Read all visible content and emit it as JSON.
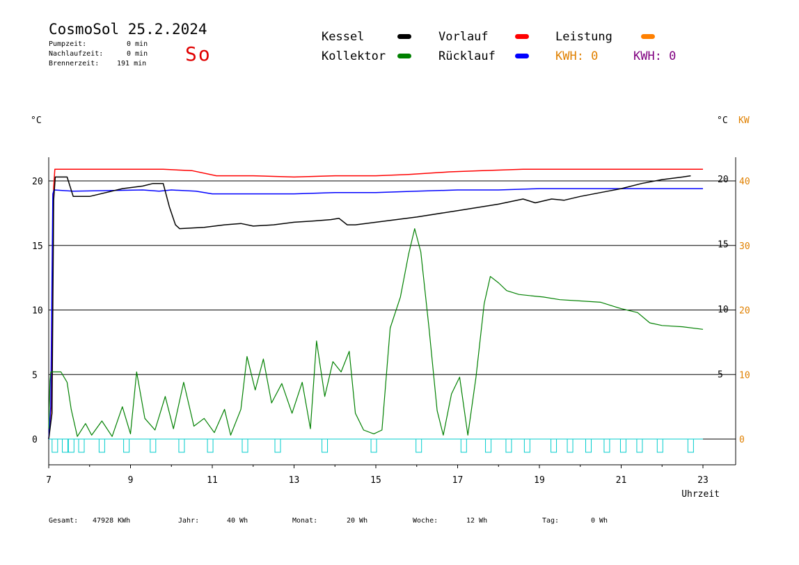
{
  "header": {
    "title": "CosmoSol 25.2.2024",
    "weekday": "So",
    "stats": [
      {
        "label": "Pumpzeit:",
        "value": "0 min"
      },
      {
        "label": "Nachlaufzeit:",
        "value": "0 min"
      },
      {
        "label": "Brennerzeit:",
        "value": "191 min"
      }
    ]
  },
  "legend": {
    "items": [
      {
        "label": "Kessel",
        "color": "#000000"
      },
      {
        "label": "Kollektor",
        "color": "#008000"
      },
      {
        "label": "Vorlauf",
        "color": "#ff0000"
      },
      {
        "label": "Rücklauf",
        "color": "#0000ff"
      },
      {
        "label": "Leistung",
        "color": "#ff8000"
      }
    ],
    "kwh_orange": "KWH: 0",
    "kwh_purple": "KWH: 0",
    "kwh_orange_color": "#e08000",
    "kwh_purple_color": "#800080"
  },
  "axis_units": {
    "left": "°C",
    "right_temp": "°C",
    "right_power": "KW"
  },
  "footer": [
    {
      "label": "Gesamt:",
      "value": "47928 KWh"
    },
    {
      "label": "Jahr:",
      "value": "40 Wh"
    },
    {
      "label": "Monat:",
      "value": "20 Wh"
    },
    {
      "label": "Woche:",
      "value": "12 Wh"
    },
    {
      "label": "Tag:",
      "value": "0 Wh"
    }
  ],
  "chart_data": {
    "type": "line",
    "xlabel": "Uhrzeit",
    "xlim": [
      7,
      23
    ],
    "x_ticks": [
      "7",
      "9",
      "11",
      "13",
      "15",
      "17",
      "19",
      "21",
      "23"
    ],
    "y_left_ticks": [
      "0",
      "5",
      "10",
      "15",
      "20"
    ],
    "y_right_temp_ticks": [
      "5",
      "10",
      "15",
      "20"
    ],
    "y_right_power_ticks": [
      "0",
      "10",
      "20",
      "30",
      "40"
    ],
    "ylim": [
      0,
      20
    ],
    "grid": true,
    "series": [
      {
        "name": "Vorlauf",
        "color": "#ff0000",
        "points": [
          [
            7.0,
            0
          ],
          [
            7.07,
            3
          ],
          [
            7.12,
            19.5
          ],
          [
            7.15,
            20.9
          ],
          [
            8.5,
            20.9
          ],
          [
            9.8,
            20.9
          ],
          [
            10.5,
            20.8
          ],
          [
            11.1,
            20.4
          ],
          [
            12.0,
            20.4
          ],
          [
            13.0,
            20.3
          ],
          [
            14.0,
            20.4
          ],
          [
            15.0,
            20.4
          ],
          [
            15.8,
            20.5
          ],
          [
            16.3,
            20.6
          ],
          [
            16.8,
            20.7
          ],
          [
            17.6,
            20.8
          ],
          [
            18.6,
            20.9
          ],
          [
            23.0,
            20.9
          ]
        ]
      },
      {
        "name": "Rücklauf",
        "color": "#0000ff",
        "points": [
          [
            7.0,
            0
          ],
          [
            7.05,
            2.5
          ],
          [
            7.1,
            19.0
          ],
          [
            7.13,
            19.3
          ],
          [
            7.6,
            19.2
          ],
          [
            9.3,
            19.3
          ],
          [
            9.7,
            19.2
          ],
          [
            10.0,
            19.3
          ],
          [
            10.6,
            19.2
          ],
          [
            11.0,
            19.0
          ],
          [
            12.0,
            19.0
          ],
          [
            13.0,
            19.0
          ],
          [
            14.0,
            19.1
          ],
          [
            15.0,
            19.1
          ],
          [
            16.0,
            19.2
          ],
          [
            17.0,
            19.3
          ],
          [
            18.0,
            19.3
          ],
          [
            19.0,
            19.4
          ],
          [
            20.0,
            19.4
          ],
          [
            23.0,
            19.4
          ]
        ]
      },
      {
        "name": "Kessel",
        "color": "#000000",
        "points": [
          [
            7.0,
            0
          ],
          [
            7.08,
            2
          ],
          [
            7.12,
            18.5
          ],
          [
            7.16,
            20.3
          ],
          [
            7.45,
            20.3
          ],
          [
            7.6,
            18.8
          ],
          [
            8.0,
            18.8
          ],
          [
            8.8,
            19.4
          ],
          [
            9.3,
            19.6
          ],
          [
            9.55,
            19.8
          ],
          [
            9.8,
            19.8
          ],
          [
            9.95,
            18.0
          ],
          [
            10.1,
            16.6
          ],
          [
            10.2,
            16.3
          ],
          [
            10.8,
            16.4
          ],
          [
            11.3,
            16.6
          ],
          [
            11.7,
            16.7
          ],
          [
            12.0,
            16.5
          ],
          [
            12.5,
            16.6
          ],
          [
            13.0,
            16.8
          ],
          [
            13.5,
            16.9
          ],
          [
            13.9,
            17.0
          ],
          [
            14.1,
            17.1
          ],
          [
            14.3,
            16.6
          ],
          [
            14.5,
            16.6
          ],
          [
            15.0,
            16.8
          ],
          [
            16.0,
            17.2
          ],
          [
            17.0,
            17.7
          ],
          [
            18.0,
            18.2
          ],
          [
            18.6,
            18.6
          ],
          [
            18.9,
            18.3
          ],
          [
            19.3,
            18.6
          ],
          [
            19.6,
            18.5
          ],
          [
            20.0,
            18.8
          ],
          [
            20.5,
            19.1
          ],
          [
            21.0,
            19.4
          ],
          [
            21.5,
            19.8
          ],
          [
            22.0,
            20.1
          ],
          [
            22.5,
            20.3
          ],
          [
            22.7,
            20.4
          ]
        ]
      },
      {
        "name": "Kollektor",
        "color": "#008000",
        "points": [
          [
            7.0,
            0.8
          ],
          [
            7.03,
            4.5
          ],
          [
            7.05,
            5.2
          ],
          [
            7.3,
            5.2
          ],
          [
            7.45,
            4.4
          ],
          [
            7.55,
            2.3
          ],
          [
            7.7,
            0.2
          ],
          [
            7.9,
            1.2
          ],
          [
            8.05,
            0.3
          ],
          [
            8.3,
            1.4
          ],
          [
            8.55,
            0.2
          ],
          [
            8.8,
            2.5
          ],
          [
            9.0,
            0.4
          ],
          [
            9.15,
            5.2
          ],
          [
            9.35,
            1.6
          ],
          [
            9.6,
            0.7
          ],
          [
            9.85,
            3.3
          ],
          [
            10.05,
            0.8
          ],
          [
            10.3,
            4.4
          ],
          [
            10.55,
            1.0
          ],
          [
            10.8,
            1.6
          ],
          [
            11.05,
            0.5
          ],
          [
            11.3,
            2.3
          ],
          [
            11.45,
            0.3
          ],
          [
            11.7,
            2.3
          ],
          [
            11.85,
            6.4
          ],
          [
            12.05,
            3.8
          ],
          [
            12.25,
            6.2
          ],
          [
            12.45,
            2.8
          ],
          [
            12.7,
            4.3
          ],
          [
            12.95,
            2.0
          ],
          [
            13.2,
            4.4
          ],
          [
            13.4,
            0.8
          ],
          [
            13.55,
            7.6
          ],
          [
            13.75,
            3.3
          ],
          [
            13.95,
            6.0
          ],
          [
            14.15,
            5.2
          ],
          [
            14.35,
            6.8
          ],
          [
            14.5,
            2.0
          ],
          [
            14.7,
            0.7
          ],
          [
            14.95,
            0.4
          ],
          [
            15.15,
            0.7
          ],
          [
            15.35,
            8.6
          ],
          [
            15.6,
            11.0
          ],
          [
            15.8,
            14.3
          ],
          [
            15.95,
            16.3
          ],
          [
            16.1,
            14.5
          ],
          [
            16.3,
            8.6
          ],
          [
            16.5,
            2.2
          ],
          [
            16.65,
            0.3
          ],
          [
            16.85,
            3.5
          ],
          [
            17.05,
            4.8
          ],
          [
            17.25,
            0.3
          ],
          [
            17.45,
            4.8
          ],
          [
            17.65,
            10.5
          ],
          [
            17.8,
            12.6
          ],
          [
            18.0,
            12.1
          ],
          [
            18.2,
            11.5
          ],
          [
            18.5,
            11.2
          ],
          [
            18.8,
            11.1
          ],
          [
            19.1,
            11.0
          ],
          [
            19.5,
            10.8
          ],
          [
            20.0,
            10.7
          ],
          [
            20.5,
            10.6
          ],
          [
            21.0,
            10.1
          ],
          [
            21.4,
            9.8
          ],
          [
            21.7,
            9.0
          ],
          [
            22.0,
            8.8
          ],
          [
            22.5,
            8.7
          ],
          [
            23.0,
            8.5
          ]
        ]
      },
      {
        "name": "Leistung",
        "color": "#00cccc",
        "points": [
          [
            7.15,
            0
          ],
          [
            7.4,
            0
          ],
          [
            7.55,
            0
          ],
          [
            7.8,
            0
          ],
          [
            8.3,
            0
          ],
          [
            8.9,
            0
          ],
          [
            9.55,
            0
          ],
          [
            10.25,
            0
          ],
          [
            10.95,
            0
          ],
          [
            11.8,
            0
          ],
          [
            12.6,
            0
          ],
          [
            13.75,
            0
          ],
          [
            14.95,
            0
          ],
          [
            16.05,
            0
          ],
          [
            17.15,
            0
          ],
          [
            17.75,
            0
          ],
          [
            18.25,
            0
          ],
          [
            18.7,
            0
          ],
          [
            19.35,
            0
          ],
          [
            19.75,
            0
          ],
          [
            20.2,
            0
          ],
          [
            20.65,
            0
          ],
          [
            21.05,
            0
          ],
          [
            21.45,
            0
          ],
          [
            21.95,
            0
          ],
          [
            22.7,
            0
          ],
          [
            23.8,
            0
          ]
        ]
      }
    ]
  }
}
